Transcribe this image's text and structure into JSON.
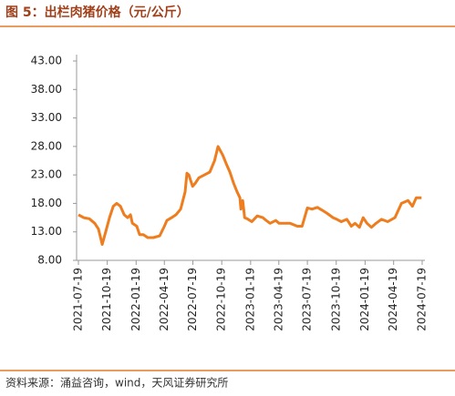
{
  "chart_data": {
    "type": "line",
    "title": "图 5：出栏肉猪价格（元/公斤）",
    "source": "资料来源：涌益咨询，wind，天风证券研究所",
    "color": "#ee7d1f",
    "x": [
      "2021-07-19",
      "2021-08-05",
      "2021-08-23",
      "2021-09-09",
      "2021-09-21",
      "2021-10-03",
      "2021-10-14",
      "2021-10-26",
      "2021-11-07",
      "2021-11-18",
      "2021-11-30",
      "2021-12-12",
      "2021-12-23",
      "2022-01-01",
      "2022-01-07",
      "2022-01-21",
      "2022-01-30",
      "2022-02-11",
      "2022-02-25",
      "2022-03-15",
      "2022-04-04",
      "2022-04-19",
      "2022-04-27",
      "2022-05-12",
      "2022-05-26",
      "2022-06-10",
      "2022-06-24",
      "2022-06-30",
      "2022-07-06",
      "2022-07-18",
      "2022-07-26",
      "2022-08-07",
      "2022-08-25",
      "2022-09-11",
      "2022-09-26",
      "2022-10-07",
      "2022-10-22",
      "2022-11-02",
      "2022-11-14",
      "2022-11-26",
      "2022-12-07",
      "2022-12-16",
      "2022-12-19",
      "2022-12-25",
      "2022-12-31",
      "2023-01-08",
      "2023-01-23",
      "2023-02-09",
      "2023-02-27",
      "2023-03-10",
      "2023-03-22",
      "2023-04-09",
      "2023-04-20",
      "2023-05-08",
      "2023-05-25",
      "2023-06-17",
      "2023-07-02",
      "2023-07-19",
      "2023-08-03",
      "2023-08-20",
      "2023-09-04",
      "2023-09-19",
      "2023-10-09",
      "2023-10-21",
      "2023-11-04",
      "2023-11-22",
      "2023-12-06",
      "2023-12-18",
      "2024-01-01",
      "2024-01-13",
      "2024-01-25",
      "2024-02-08",
      "2024-02-23",
      "2024-03-11",
      "2024-03-31",
      "2024-04-23",
      "2024-05-14",
      "2024-06-04",
      "2024-06-18",
      "2024-06-30",
      "2024-07-17"
    ],
    "values": [
      16.0,
      15.5,
      15.3,
      14.5,
      13.5,
      10.8,
      13.0,
      15.5,
      17.5,
      18.0,
      17.5,
      16.0,
      15.5,
      16.0,
      14.5,
      14.0,
      12.5,
      12.5,
      12.0,
      12.0,
      12.3,
      14.0,
      15.0,
      15.5,
      16.0,
      17.0,
      20.0,
      23.3,
      23.0,
      21.0,
      21.5,
      22.5,
      23.0,
      23.5,
      25.5,
      28.0,
      26.5,
      25.0,
      23.5,
      21.5,
      20.0,
      19.0,
      17.0,
      18.5,
      15.5,
      15.3,
      14.8,
      15.8,
      15.5,
      15.0,
      14.5,
      15.0,
      14.5,
      14.5,
      14.5,
      14.0,
      14.0,
      17.2,
      17.0,
      17.3,
      16.8,
      16.3,
      15.5,
      15.2,
      14.8,
      15.2,
      14.0,
      14.5,
      13.8,
      15.5,
      14.5,
      13.8,
      14.5,
      15.2,
      14.8,
      15.5,
      18.0,
      18.5,
      17.5,
      19.0,
      19.0
    ],
    "xlim": [
      "2021-07-19",
      "2024-07-19"
    ],
    "xticks": [
      "2021-07-19",
      "2021-10-19",
      "2022-01-19",
      "2022-04-19",
      "2022-07-19",
      "2022-10-19",
      "2023-01-19",
      "2023-04-19",
      "2023-07-19",
      "2023-10-19",
      "2024-01-19",
      "2024-04-19",
      "2024-07-19"
    ],
    "ylim": [
      8,
      43
    ],
    "yticks": [
      {
        "value": 8,
        "label": "8.00"
      },
      {
        "value": 13,
        "label": "13.00"
      },
      {
        "value": 18,
        "label": "18.00"
      },
      {
        "value": 23,
        "label": "23.00"
      },
      {
        "value": 28,
        "label": "28.00"
      },
      {
        "value": 33,
        "label": "33.00"
      },
      {
        "value": 38,
        "label": "38.00"
      },
      {
        "value": 43,
        "label": "43.00"
      }
    ]
  }
}
